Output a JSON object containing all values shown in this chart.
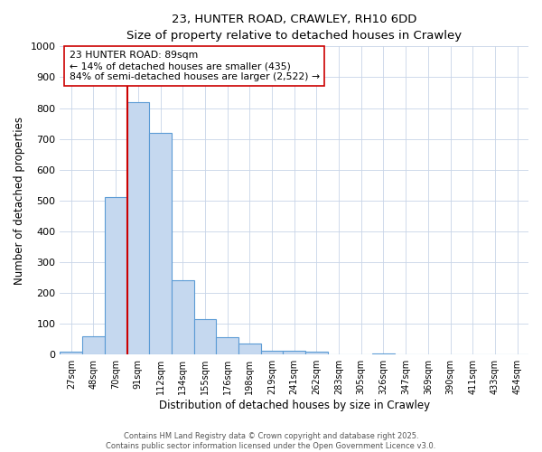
{
  "title": "23, HUNTER ROAD, CRAWLEY, RH10 6DD",
  "subtitle": "Size of property relative to detached houses in Crawley",
  "xlabel": "Distribution of detached houses by size in Crawley",
  "ylabel": "Number of detached properties",
  "categories": [
    "27sqm",
    "48sqm",
    "70sqm",
    "91sqm",
    "112sqm",
    "134sqm",
    "155sqm",
    "176sqm",
    "198sqm",
    "219sqm",
    "241sqm",
    "262sqm",
    "283sqm",
    "305sqm",
    "326sqm",
    "347sqm",
    "369sqm",
    "390sqm",
    "411sqm",
    "433sqm",
    "454sqm"
  ],
  "values": [
    8,
    58,
    510,
    820,
    720,
    240,
    115,
    55,
    35,
    12,
    12,
    10,
    0,
    0,
    5,
    0,
    0,
    0,
    0,
    0,
    0
  ],
  "bar_color": "#c5d8ef",
  "bar_edge_color": "#5b9bd5",
  "property_line_color": "#cc0000",
  "annotation_text": "23 HUNTER ROAD: 89sqm\n← 14% of detached houses are smaller (435)\n84% of semi-detached houses are larger (2,522) →",
  "annotation_box_color": "#ffffff",
  "annotation_box_edge": "#cc0000",
  "ylim": [
    0,
    1000
  ],
  "yticks": [
    0,
    100,
    200,
    300,
    400,
    500,
    600,
    700,
    800,
    900,
    1000
  ],
  "footer_line1": "Contains HM Land Registry data © Crown copyright and database right 2025.",
  "footer_line2": "Contains public sector information licensed under the Open Government Licence v3.0.",
  "bg_color": "#ffffff",
  "grid_color": "#c8d4e8"
}
